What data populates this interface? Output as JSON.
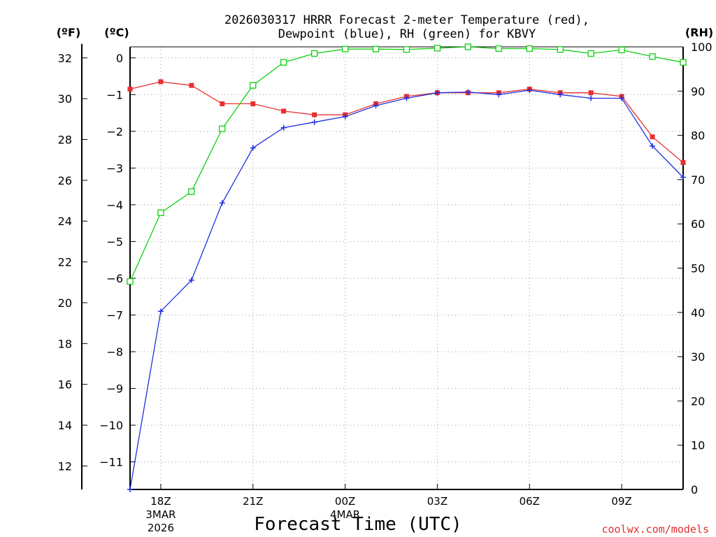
{
  "chart_data": {
    "type": "line",
    "title_line1": "2026030317 HRRR Forecast 2-meter Temperature (red),",
    "title_line2": "Dewpoint (blue), RH (green) for KBVY",
    "xlabel": "Forecast Time (UTC)",
    "credit": "coolwx.com/models",
    "unit_f": "(ºF)",
    "unit_c": "(ºC)",
    "unit_rh": "(RH)",
    "hours": [
      0,
      1,
      2,
      3,
      4,
      5,
      6,
      7,
      8,
      9,
      10,
      11,
      12,
      13,
      14,
      15,
      16,
      17,
      18
    ],
    "series": [
      {
        "name": "Temperature",
        "axis": "C",
        "color": "#e83030",
        "marker": "filled-square",
        "values": [
          -0.85,
          -0.65,
          -0.75,
          -1.25,
          -1.25,
          -1.45,
          -1.55,
          -1.55,
          -1.25,
          -1.05,
          -0.95,
          -0.95,
          -0.95,
          -0.85,
          -0.95,
          -0.95,
          -1.05,
          -2.15,
          -2.85
        ]
      },
      {
        "name": "Dewpoint",
        "axis": "C",
        "color": "#2030e0",
        "marker": "plus",
        "values": [
          -11.75,
          -6.9,
          -6.05,
          -3.95,
          -2.45,
          -1.9,
          -1.75,
          -1.6,
          -1.3,
          -1.1,
          -0.95,
          -0.93,
          -1.0,
          -0.88,
          -1.0,
          -1.1,
          -1.1,
          -2.4,
          -3.25
        ]
      },
      {
        "name": "RH",
        "axis": "RH",
        "color": "#10d010",
        "marker": "open-square",
        "values": [
          47,
          62.5,
          67.3,
          81.5,
          91.3,
          96.5,
          98.5,
          99.5,
          99.5,
          99.4,
          99.7,
          100,
          99.6,
          99.6,
          99.4,
          98.5,
          99.3,
          97.8,
          96.5
        ]
      }
    ],
    "x_ticks": [
      {
        "hour": 1,
        "label": "18Z",
        "sub1": "3MAR",
        "sub2": "2026"
      },
      {
        "hour": 4,
        "label": "21Z",
        "sub1": "",
        "sub2": ""
      },
      {
        "hour": 7,
        "label": "00Z",
        "sub1": "4MAR",
        "sub2": ""
      },
      {
        "hour": 10,
        "label": "03Z",
        "sub1": "",
        "sub2": ""
      },
      {
        "hour": 13,
        "label": "06Z",
        "sub1": "",
        "sub2": ""
      },
      {
        "hour": 16,
        "label": "09Z",
        "sub1": "",
        "sub2": ""
      }
    ],
    "y_c": {
      "range": [
        -11.75,
        0.3
      ],
      "ticks": [
        0,
        -1,
        -2,
        -3,
        -4,
        -5,
        -6,
        -7,
        -8,
        -9,
        -10,
        -11
      ],
      "tick_labels": [
        "0",
        "−1",
        "−2",
        "−3",
        "−4",
        "−5",
        "−6",
        "−7",
        "−8",
        "−9",
        "−10",
        "−11"
      ]
    },
    "y_f": {
      "ticks": [
        32,
        30,
        28,
        26,
        24,
        22,
        20,
        18,
        16,
        14,
        12
      ]
    },
    "y_rh": {
      "range": [
        0,
        100
      ],
      "ticks": [
        0,
        10,
        20,
        30,
        40,
        50,
        60,
        70,
        80,
        90,
        100
      ]
    },
    "grid": true
  }
}
